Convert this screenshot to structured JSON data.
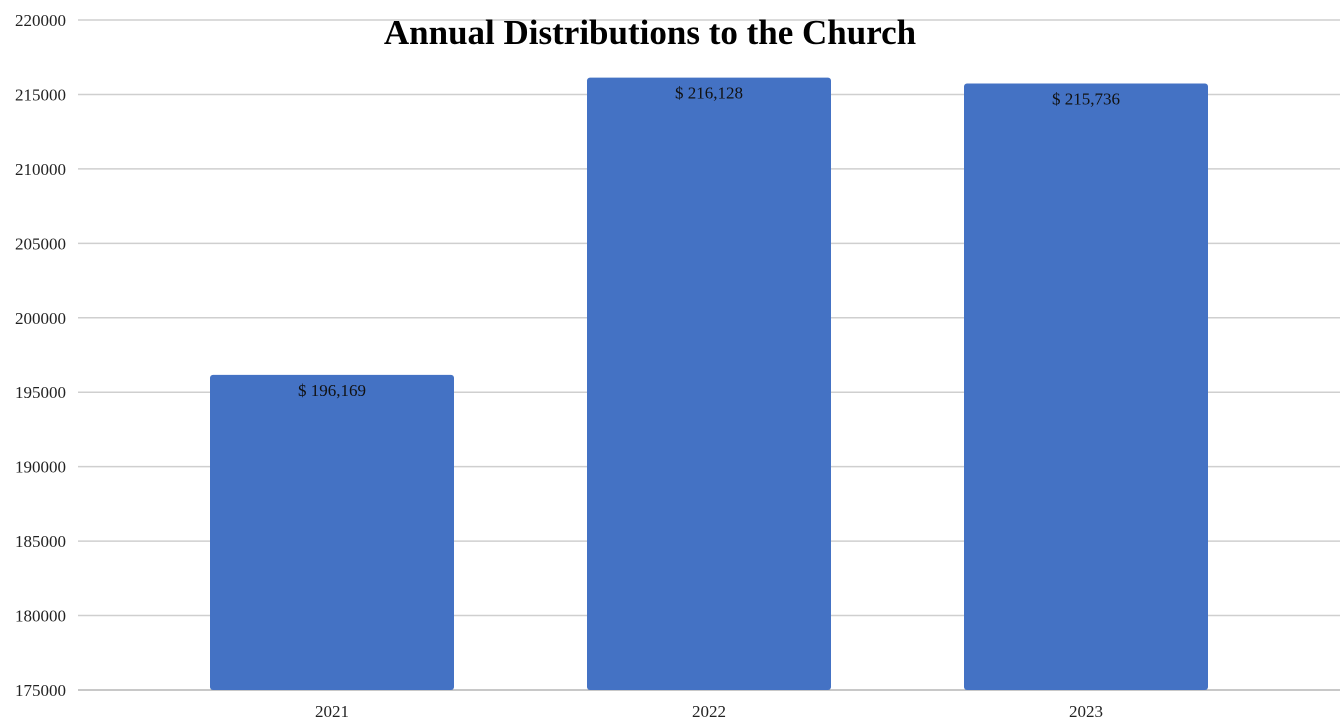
{
  "chart_data": {
    "type": "bar",
    "title": "Annual Distributions to the Church",
    "xlabel": "",
    "ylabel": "",
    "categories": [
      "2021",
      "2022",
      "2023"
    ],
    "values": [
      196169,
      216128,
      215736
    ],
    "data_labels": [
      "$ 196,169",
      "$ 216,128",
      "$ 215,736"
    ],
    "ylim": [
      175000,
      220000
    ],
    "yticks": [
      175000,
      180000,
      185000,
      190000,
      195000,
      200000,
      205000,
      210000,
      215000,
      220000
    ],
    "ytick_labels": [
      "175000",
      "180000",
      "185000",
      "190000",
      "195000",
      "200000",
      "205000",
      "210000",
      "215000",
      "220000"
    ],
    "grid": true,
    "legend": "none",
    "bar_color": "#4472C4"
  }
}
